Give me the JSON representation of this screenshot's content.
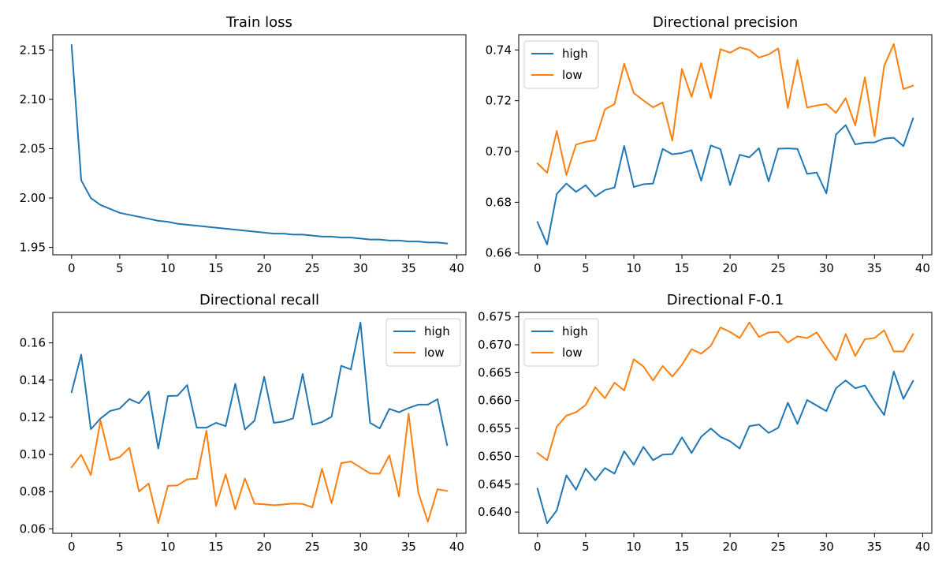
{
  "chart_data": [
    {
      "type": "line",
      "title": "Train loss",
      "xlabel": "",
      "ylabel": "",
      "xlim": [
        -1.95,
        40.95
      ],
      "ylim": [
        1.9425,
        2.1655
      ],
      "xticks": [
        0,
        5,
        10,
        15,
        20,
        25,
        30,
        35,
        40
      ],
      "yticks": [
        1.95,
        2.0,
        2.05,
        2.1,
        2.15
      ],
      "ytick_labels": [
        "1.95",
        "2.00",
        "2.05",
        "2.10",
        "2.15"
      ],
      "grid": false,
      "legend": null,
      "series": [
        {
          "color": "#1f77b4",
          "x": [
            0,
            1,
            2,
            3,
            4,
            5,
            6,
            7,
            8,
            9,
            10,
            11,
            12,
            13,
            14,
            15,
            16,
            17,
            18,
            19,
            20,
            21,
            22,
            23,
            24,
            25,
            26,
            27,
            28,
            29,
            30,
            31,
            32,
            33,
            34,
            35,
            36,
            37,
            38,
            39
          ],
          "y": [
            2.155,
            2.018,
            2.0,
            1.993,
            1.989,
            1.985,
            1.983,
            1.981,
            1.979,
            1.977,
            1.976,
            1.974,
            1.973,
            1.972,
            1.971,
            1.97,
            1.969,
            1.968,
            1.967,
            1.966,
            1.965,
            1.964,
            1.964,
            1.963,
            1.963,
            1.962,
            1.961,
            1.961,
            1.96,
            1.96,
            1.959,
            1.958,
            1.958,
            1.957,
            1.957,
            1.956,
            1.956,
            1.955,
            1.955,
            1.954
          ]
        }
      ]
    },
    {
      "type": "line",
      "title": "Directional precision",
      "xlabel": "",
      "ylabel": "",
      "xlim": [
        -1.95,
        40.95
      ],
      "ylim": [
        0.6593,
        0.746
      ],
      "xticks": [
        0,
        5,
        10,
        15,
        20,
        25,
        30,
        35,
        40
      ],
      "yticks": [
        0.66,
        0.68,
        0.7,
        0.72,
        0.74
      ],
      "ytick_labels": [
        "0.66",
        "0.68",
        "0.70",
        "0.72",
        "0.74"
      ],
      "grid": false,
      "legend": "upper left",
      "series": [
        {
          "name": "high",
          "color": "#1f77b4",
          "x": [
            0,
            1,
            2,
            3,
            4,
            5,
            6,
            7,
            8,
            9,
            10,
            11,
            12,
            13,
            14,
            15,
            16,
            17,
            18,
            19,
            20,
            21,
            22,
            23,
            24,
            25,
            26,
            27,
            28,
            29,
            30,
            31,
            32,
            33,
            34,
            35,
            36,
            37,
            38,
            39
          ],
          "y": [
            0.6722,
            0.6634,
            0.6833,
            0.6874,
            0.6841,
            0.6867,
            0.6823,
            0.6848,
            0.6858,
            0.7022,
            0.686,
            0.6871,
            0.6874,
            0.701,
            0.6989,
            0.6994,
            0.7005,
            0.6885,
            0.7024,
            0.7009,
            0.6868,
            0.6987,
            0.6977,
            0.7013,
            0.6882,
            0.7011,
            0.7012,
            0.701,
            0.6912,
            0.6917,
            0.6835,
            0.7067,
            0.7104,
            0.7028,
            0.7035,
            0.7036,
            0.7051,
            0.7054,
            0.7021,
            0.713
          ]
        },
        {
          "name": "low",
          "color": "#ff7f0e",
          "x": [
            0,
            1,
            2,
            3,
            4,
            5,
            6,
            7,
            8,
            9,
            10,
            11,
            12,
            13,
            14,
            15,
            16,
            17,
            18,
            19,
            20,
            21,
            22,
            23,
            24,
            25,
            26,
            27,
            28,
            29,
            30,
            31,
            32,
            33,
            34,
            35,
            36,
            37,
            38,
            39
          ],
          "y": [
            0.6953,
            0.6916,
            0.7081,
            0.6907,
            0.7027,
            0.7038,
            0.7044,
            0.7166,
            0.7187,
            0.7346,
            0.723,
            0.7201,
            0.7174,
            0.7193,
            0.7043,
            0.7325,
            0.7215,
            0.7348,
            0.721,
            0.7403,
            0.7389,
            0.741,
            0.74,
            0.737,
            0.7382,
            0.7406,
            0.7171,
            0.7361,
            0.7173,
            0.7181,
            0.7187,
            0.7152,
            0.721,
            0.7103,
            0.7292,
            0.706,
            0.7337,
            0.7423,
            0.7246,
            0.7259
          ]
        }
      ]
    },
    {
      "type": "line",
      "title": "Directional recall",
      "xlabel": "",
      "ylabel": "",
      "xlim": [
        -1.95,
        40.95
      ],
      "ylim": [
        0.0576,
        0.1764
      ],
      "xticks": [
        0,
        5,
        10,
        15,
        20,
        25,
        30,
        35,
        40
      ],
      "yticks": [
        0.06,
        0.08,
        0.1,
        0.12,
        0.14,
        0.16
      ],
      "ytick_labels": [
        "0.06",
        "0.08",
        "0.10",
        "0.12",
        "0.14",
        "0.16"
      ],
      "grid": false,
      "legend": "upper right",
      "series": [
        {
          "name": "high",
          "color": "#1f77b4",
          "x": [
            0,
            1,
            2,
            3,
            4,
            5,
            6,
            7,
            8,
            9,
            10,
            11,
            12,
            13,
            14,
            15,
            16,
            17,
            18,
            19,
            20,
            21,
            22,
            23,
            24,
            25,
            26,
            27,
            28,
            29,
            30,
            31,
            32,
            33,
            34,
            35,
            36,
            37,
            38,
            39
          ],
          "y": [
            0.1335,
            0.1537,
            0.1136,
            0.1193,
            0.1234,
            0.1247,
            0.1298,
            0.1275,
            0.1338,
            0.1032,
            0.1314,
            0.1316,
            0.1373,
            0.1144,
            0.1144,
            0.117,
            0.1152,
            0.138,
            0.1134,
            0.1182,
            0.1418,
            0.117,
            0.1177,
            0.1194,
            0.1433,
            0.116,
            0.1174,
            0.1203,
            0.1477,
            0.1457,
            0.171,
            0.117,
            0.114,
            0.1245,
            0.1227,
            0.125,
            0.1268,
            0.1268,
            0.1297,
            0.105
          ]
        },
        {
          "name": "low",
          "color": "#ff7f0e",
          "x": [
            0,
            1,
            2,
            3,
            4,
            5,
            6,
            7,
            8,
            9,
            10,
            11,
            12,
            13,
            14,
            15,
            16,
            17,
            18,
            19,
            20,
            21,
            22,
            23,
            24,
            25,
            26,
            27,
            28,
            29,
            30,
            31,
            32,
            33,
            34,
            35,
            36,
            37,
            38,
            39
          ],
          "y": [
            0.0932,
            0.0998,
            0.0889,
            0.1182,
            0.097,
            0.0986,
            0.1036,
            0.0801,
            0.0844,
            0.0631,
            0.0831,
            0.0834,
            0.0866,
            0.087,
            0.1128,
            0.0723,
            0.0893,
            0.0705,
            0.0871,
            0.0735,
            0.0732,
            0.0727,
            0.0731,
            0.0736,
            0.0734,
            0.0715,
            0.0923,
            0.0738,
            0.0953,
            0.0962,
            0.093,
            0.0898,
            0.0897,
            0.0995,
            0.0774,
            0.122,
            0.0797,
            0.0638,
            0.0813,
            0.0804
          ]
        }
      ]
    },
    {
      "type": "line",
      "title": "Directional F-0.1",
      "xlabel": "",
      "ylabel": "",
      "xlim": [
        -1.95,
        40.95
      ],
      "ylim": [
        0.6362,
        0.6758
      ],
      "xticks": [
        0,
        5,
        10,
        15,
        20,
        25,
        30,
        35,
        40
      ],
      "yticks": [
        0.64,
        0.645,
        0.65,
        0.655,
        0.66,
        0.665,
        0.67,
        0.675
      ],
      "ytick_labels": [
        "0.640",
        "0.645",
        "0.650",
        "0.655",
        "0.660",
        "0.665",
        "0.670",
        "0.675"
      ],
      "grid": false,
      "legend": "upper left",
      "series": [
        {
          "name": "high",
          "color": "#1f77b4",
          "x": [
            0,
            1,
            2,
            3,
            4,
            5,
            6,
            7,
            8,
            9,
            10,
            11,
            12,
            13,
            14,
            15,
            16,
            17,
            18,
            19,
            20,
            21,
            22,
            23,
            24,
            25,
            26,
            27,
            28,
            29,
            30,
            31,
            32,
            33,
            34,
            35,
            36,
            37,
            38,
            39
          ],
          "y": [
            0.6442,
            0.638,
            0.6403,
            0.6466,
            0.644,
            0.6478,
            0.6457,
            0.6479,
            0.6469,
            0.6509,
            0.6485,
            0.6517,
            0.6493,
            0.6503,
            0.6504,
            0.6534,
            0.6506,
            0.6535,
            0.655,
            0.6535,
            0.6527,
            0.6514,
            0.6554,
            0.6557,
            0.6542,
            0.6551,
            0.6596,
            0.6558,
            0.6601,
            0.6591,
            0.6581,
            0.6622,
            0.6636,
            0.6622,
            0.6627,
            0.6599,
            0.6574,
            0.6652,
            0.6603,
            0.6635
          ]
        },
        {
          "name": "low",
          "color": "#ff7f0e",
          "x": [
            0,
            1,
            2,
            3,
            4,
            5,
            6,
            7,
            8,
            9,
            10,
            11,
            12,
            13,
            14,
            15,
            16,
            17,
            18,
            19,
            20,
            21,
            22,
            23,
            24,
            25,
            26,
            27,
            28,
            29,
            30,
            31,
            32,
            33,
            34,
            35,
            36,
            37,
            38,
            39
          ],
          "y": [
            0.6506,
            0.6493,
            0.6553,
            0.6573,
            0.6579,
            0.6592,
            0.6624,
            0.6604,
            0.6632,
            0.6618,
            0.6674,
            0.6661,
            0.6636,
            0.6662,
            0.6643,
            0.6664,
            0.6692,
            0.6684,
            0.6698,
            0.6731,
            0.6723,
            0.6712,
            0.674,
            0.6714,
            0.6722,
            0.6723,
            0.6704,
            0.6715,
            0.6712,
            0.6722,
            0.6696,
            0.6672,
            0.6719,
            0.668,
            0.671,
            0.6712,
            0.6726,
            0.6688,
            0.6688,
            0.6719
          ]
        }
      ]
    }
  ]
}
